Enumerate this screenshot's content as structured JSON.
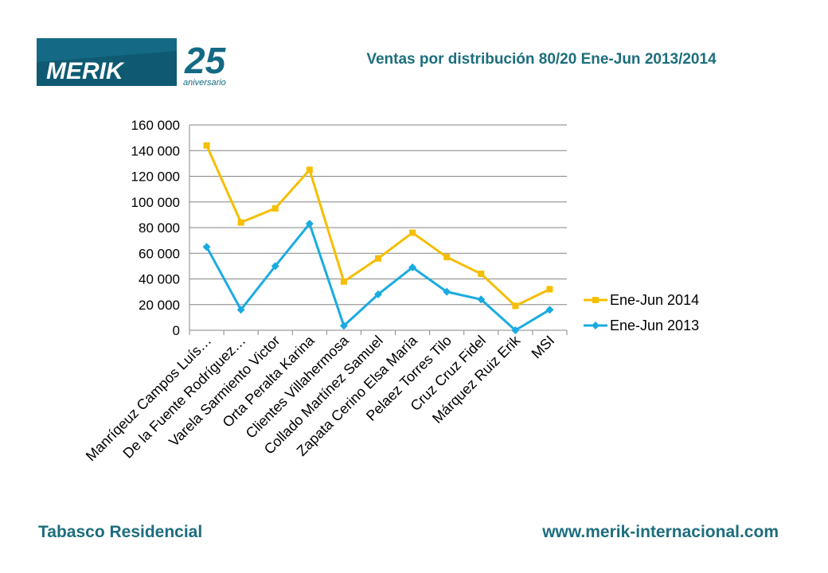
{
  "header": {
    "logo_text": "MERIK",
    "logo_number": "25",
    "logo_subtext": "aniversario"
  },
  "footer": {
    "left": "Tabasco Residencial",
    "right": "www.merik-internacional.com"
  },
  "colors": {
    "brand": "#1c6e7d",
    "logo_blue": "#146a84",
    "series_2014": "#f5be00",
    "series_2013": "#1aabe0",
    "grid": "#868686"
  },
  "chart_data": {
    "type": "line",
    "title": "Ventas por distribución 80/20 Ene-Jun 2013/2014",
    "xlabel": "",
    "ylabel": "",
    "ylim": [
      0,
      160000
    ],
    "yticks": [
      0,
      20000,
      40000,
      60000,
      80000,
      100000,
      120000,
      140000,
      160000
    ],
    "ytick_labels": [
      "0",
      "20 000",
      "40 000",
      "60 000",
      "80 000",
      "100 000",
      "120 000",
      "140 000",
      "160 000"
    ],
    "grid": true,
    "legend_position": "right",
    "categories": [
      "Manríqeuz Campos Luís…",
      "De la Fuente Rodríguez…",
      "Varela Sarmiento Victor",
      "Orta Peralta Karina",
      "Clientes Villahermosa",
      "Collado Martínez Samuel",
      "Zapata Cerino Elsa María",
      "Pelaez Torres Tilo",
      "Cruz Cruz Fidel",
      "Márquez Ruiz Erik",
      "MSI"
    ],
    "series": [
      {
        "name": "Ene-Jun 2014",
        "marker": "square",
        "color": "#f5be00",
        "values": [
          144000,
          84000,
          95000,
          125000,
          38000,
          56000,
          76000,
          57000,
          44000,
          19000,
          32000
        ]
      },
      {
        "name": "Ene-Jun 2013",
        "marker": "diamond",
        "color": "#1aabe0",
        "values": [
          65000,
          16000,
          50000,
          83000,
          3500,
          28000,
          49000,
          30000,
          24000,
          0,
          16000
        ]
      }
    ]
  }
}
